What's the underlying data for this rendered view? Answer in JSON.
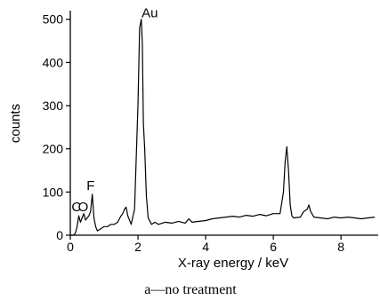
{
  "chart_data": {
    "type": "line",
    "title": "",
    "caption": "a—no treatment",
    "xlabel": "X-ray energy / keV",
    "ylabel": "counts",
    "xlim": [
      0,
      9.1
    ],
    "ylim": [
      0,
      520
    ],
    "x_ticks": [
      0,
      2,
      4,
      6,
      8
    ],
    "y_ticks": [
      0,
      100,
      200,
      300,
      400,
      500
    ],
    "grid": false,
    "legend": "none",
    "annotations": [
      {
        "text": "C",
        "x": 0.18,
        "y": 55
      },
      {
        "text": "O",
        "x": 0.38,
        "y": 55
      },
      {
        "text": "F",
        "x": 0.6,
        "y": 105
      },
      {
        "text": "Au",
        "x": 2.35,
        "y": 505
      }
    ],
    "series": [
      {
        "color": "#000000",
        "x": [
          0.0,
          0.1,
          0.15,
          0.2,
          0.25,
          0.3,
          0.35,
          0.4,
          0.45,
          0.5,
          0.55,
          0.6,
          0.65,
          0.7,
          0.75,
          0.8,
          0.9,
          1.0,
          1.1,
          1.2,
          1.3,
          1.4,
          1.5,
          1.55,
          1.6,
          1.65,
          1.7,
          1.8,
          1.9,
          2.0,
          2.05,
          2.1,
          2.13,
          2.16,
          2.2,
          2.25,
          2.3,
          2.4,
          2.5,
          2.6,
          2.8,
          3.0,
          3.2,
          3.4,
          3.5,
          3.6,
          3.8,
          4.0,
          4.2,
          4.4,
          4.6,
          4.8,
          5.0,
          5.2,
          5.4,
          5.6,
          5.8,
          6.0,
          6.2,
          6.3,
          6.35,
          6.4,
          6.45,
          6.5,
          6.55,
          6.6,
          6.8,
          6.9,
          7.0,
          7.05,
          7.1,
          7.2,
          7.4,
          7.6,
          7.8,
          8.0,
          8.2,
          8.4,
          8.6,
          8.8,
          9.0
        ],
        "y": [
          0,
          0,
          5,
          20,
          45,
          30,
          40,
          50,
          35,
          40,
          45,
          55,
          95,
          40,
          20,
          10,
          15,
          20,
          20,
          25,
          25,
          30,
          45,
          50,
          60,
          65,
          45,
          25,
          60,
          300,
          480,
          500,
          440,
          260,
          200,
          90,
          40,
          25,
          30,
          25,
          30,
          28,
          32,
          28,
          38,
          30,
          32,
          34,
          38,
          40,
          42,
          44,
          42,
          46,
          44,
          48,
          45,
          50,
          50,
          100,
          170,
          205,
          150,
          70,
          45,
          40,
          42,
          55,
          60,
          70,
          55,
          42,
          40,
          38,
          42,
          40,
          42,
          40,
          38,
          40,
          42
        ]
      }
    ]
  }
}
